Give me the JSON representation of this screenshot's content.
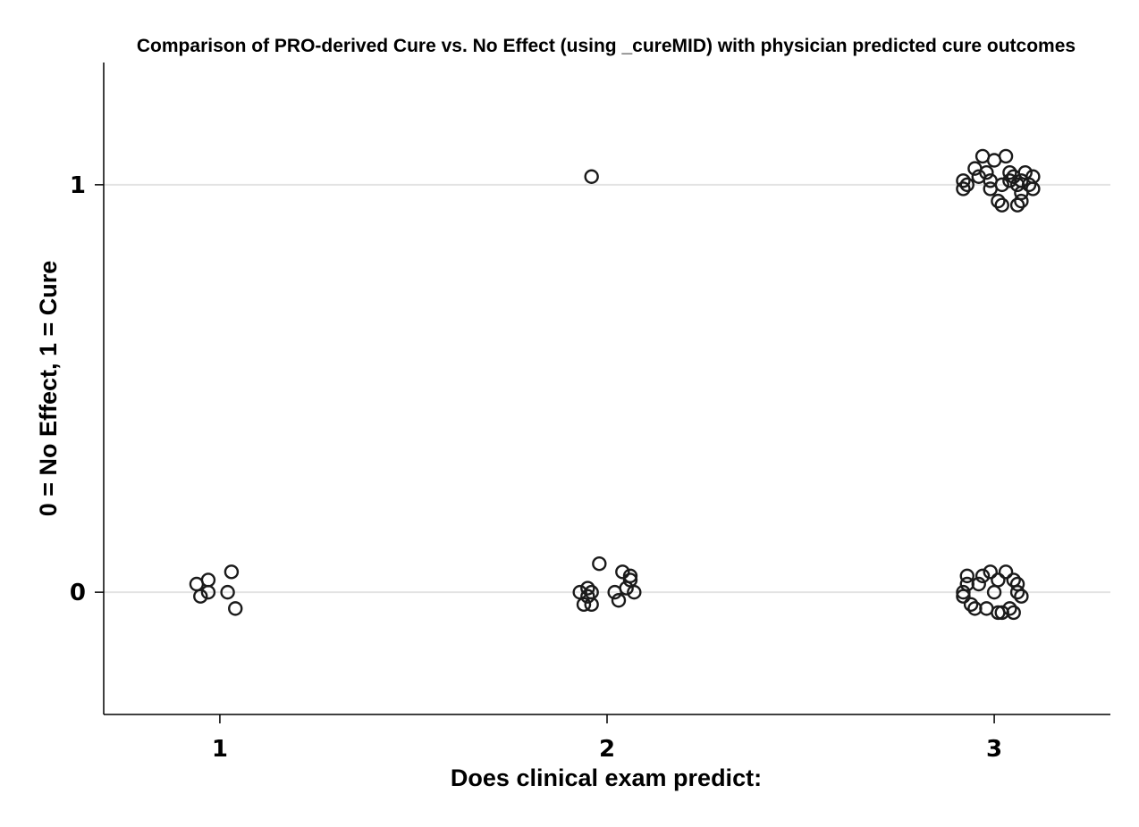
{
  "chart_data": {
    "type": "scatter",
    "title": "Comparison of PRO-derived Cure vs. No Effect (using _cureMID) with physician predicted cure outcomes",
    "xlabel": "Does clinical exam predict:",
    "ylabel": "0 = No Effect, 1 = Cure",
    "xlim": [
      0.7,
      3.3
    ],
    "ylim": [
      -0.3,
      1.3
    ],
    "xticks": [
      1,
      2,
      3
    ],
    "yticks": [
      0,
      1
    ],
    "xtick_labels": [
      "1",
      "2",
      "3"
    ],
    "ytick_labels": [
      "0",
      "1"
    ],
    "grid": "horizontal",
    "jitter": true,
    "marker": "hollow-circle",
    "marker_color": "#1a1a1a",
    "points": [
      {
        "x": 0.94,
        "y": 0.02
      },
      {
        "x": 0.95,
        "y": -0.01
      },
      {
        "x": 0.97,
        "y": 0.0
      },
      {
        "x": 0.97,
        "y": 0.03
      },
      {
        "x": 1.02,
        "y": 0.0
      },
      {
        "x": 1.03,
        "y": 0.05
      },
      {
        "x": 1.04,
        "y": -0.04
      },
      {
        "x": 1.96,
        "y": 1.02
      },
      {
        "x": 1.93,
        "y": 0.0
      },
      {
        "x": 1.94,
        "y": -0.03
      },
      {
        "x": 1.95,
        "y": -0.01
      },
      {
        "x": 1.95,
        "y": 0.01
      },
      {
        "x": 1.96,
        "y": -0.03
      },
      {
        "x": 1.96,
        "y": 0.0
      },
      {
        "x": 1.98,
        "y": 0.07
      },
      {
        "x": 2.02,
        "y": 0.0
      },
      {
        "x": 2.03,
        "y": -0.02
      },
      {
        "x": 2.04,
        "y": 0.05
      },
      {
        "x": 2.05,
        "y": 0.01
      },
      {
        "x": 2.06,
        "y": 0.03
      },
      {
        "x": 2.06,
        "y": 0.04
      },
      {
        "x": 2.07,
        "y": 0.0
      },
      {
        "x": 2.92,
        "y": 0.99
      },
      {
        "x": 2.92,
        "y": 1.01
      },
      {
        "x": 2.93,
        "y": 1.0
      },
      {
        "x": 2.95,
        "y": 1.04
      },
      {
        "x": 2.96,
        "y": 1.02
      },
      {
        "x": 2.97,
        "y": 1.07
      },
      {
        "x": 2.98,
        "y": 1.03
      },
      {
        "x": 2.99,
        "y": 1.01
      },
      {
        "x": 2.99,
        "y": 0.99
      },
      {
        "x": 3.0,
        "y": 1.06
      },
      {
        "x": 3.01,
        "y": 0.96
      },
      {
        "x": 3.02,
        "y": 0.95
      },
      {
        "x": 3.02,
        "y": 1.0
      },
      {
        "x": 3.03,
        "y": 1.07
      },
      {
        "x": 3.04,
        "y": 1.03
      },
      {
        "x": 3.04,
        "y": 1.01
      },
      {
        "x": 3.05,
        "y": 1.02
      },
      {
        "x": 3.06,
        "y": 0.95
      },
      {
        "x": 3.06,
        "y": 1.0
      },
      {
        "x": 3.07,
        "y": 0.98
      },
      {
        "x": 3.07,
        "y": 1.01
      },
      {
        "x": 3.07,
        "y": 0.96
      },
      {
        "x": 3.08,
        "y": 1.03
      },
      {
        "x": 3.09,
        "y": 1.0
      },
      {
        "x": 3.1,
        "y": 0.99
      },
      {
        "x": 3.1,
        "y": 1.02
      },
      {
        "x": 2.92,
        "y": 0.0
      },
      {
        "x": 2.92,
        "y": -0.01
      },
      {
        "x": 2.93,
        "y": 0.02
      },
      {
        "x": 2.93,
        "y": 0.04
      },
      {
        "x": 2.94,
        "y": -0.03
      },
      {
        "x": 2.95,
        "y": -0.04
      },
      {
        "x": 2.96,
        "y": 0.02
      },
      {
        "x": 2.97,
        "y": 0.04
      },
      {
        "x": 2.98,
        "y": -0.04
      },
      {
        "x": 2.99,
        "y": 0.05
      },
      {
        "x": 3.0,
        "y": 0.0
      },
      {
        "x": 3.01,
        "y": 0.03
      },
      {
        "x": 3.01,
        "y": -0.05
      },
      {
        "x": 3.02,
        "y": -0.05
      },
      {
        "x": 3.03,
        "y": 0.05
      },
      {
        "x": 3.04,
        "y": -0.04
      },
      {
        "x": 3.05,
        "y": -0.05
      },
      {
        "x": 3.05,
        "y": 0.03
      },
      {
        "x": 3.06,
        "y": 0.0
      },
      {
        "x": 3.06,
        "y": 0.02
      },
      {
        "x": 3.07,
        "y": -0.01
      }
    ]
  }
}
